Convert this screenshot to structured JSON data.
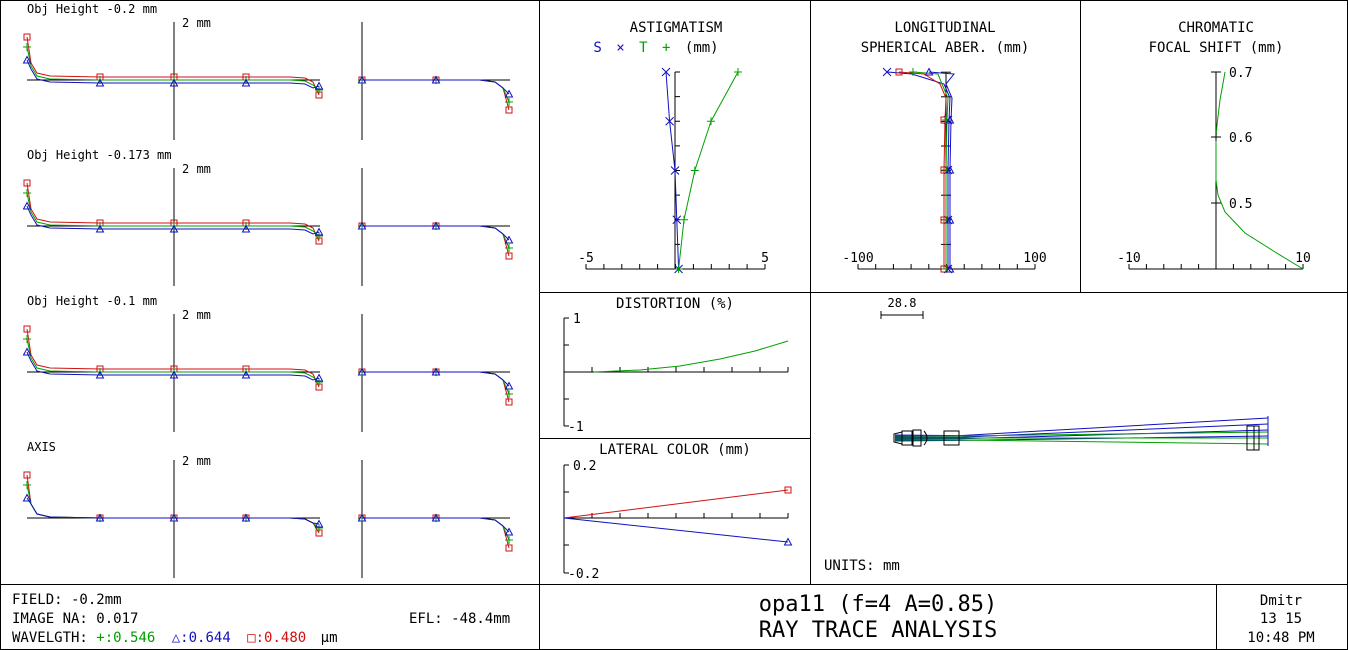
{
  "colors": {
    "green": "#00a000",
    "blue": "#1010c0",
    "red": "#d01010",
    "black": "#000000"
  },
  "ray_fan": {
    "scale_label": "2 mm",
    "fields": [
      {
        "label": "Obj Height -0.2 mm"
      },
      {
        "label": "Obj Height -0.173 mm"
      },
      {
        "label": "Obj Height -0.1 mm"
      },
      {
        "label": "AXIS"
      }
    ]
  },
  "chart_data": [
    {
      "type": "line",
      "title": "ASTIGMATISM",
      "legend": [
        "S",
        "×",
        "T",
        "+",
        "(mm)"
      ],
      "xlim": [
        -5,
        5
      ],
      "tick_labels": [
        "-5",
        "5"
      ],
      "series": [
        {
          "marker": "x",
          "color": "blue",
          "x": [
            -0.5,
            -0.3,
            0,
            0.1,
            0.2
          ],
          "y": [
            1.0,
            0.75,
            0.5,
            0.25,
            0
          ]
        },
        {
          "marker": "+",
          "color": "green",
          "x": [
            3.5,
            2.0,
            1.1,
            0.5,
            0.2
          ],
          "y": [
            1.0,
            0.75,
            0.5,
            0.25,
            0
          ]
        }
      ]
    },
    {
      "type": "line",
      "title": [
        "LONGITUDINAL",
        "SPHERICAL ABER. (mm)"
      ],
      "xlim": [
        -100,
        100
      ],
      "tick_labels": [
        "-100",
        "100"
      ]
    },
    {
      "type": "line",
      "title": [
        "CHROMATIC",
        "FOCAL SHIFT (mm)"
      ],
      "xlim": [
        -10,
        10
      ],
      "tick_labels": [
        "-10",
        "10"
      ],
      "y_tick_labels": [
        "0.7",
        "0.6",
        "0.5"
      ],
      "series": [
        {
          "color": "green",
          "x": [
            0.8,
            0,
            0,
            10
          ],
          "y": [
            0.7,
            0.6,
            0.5,
            0.4
          ]
        }
      ]
    },
    {
      "type": "line",
      "title": "DISTORTION (%)",
      "ylim": [
        -1,
        1
      ],
      "tick_labels": [
        "1",
        "-1"
      ],
      "series": [
        {
          "color": "green",
          "x": [
            0,
            0.25,
            0.5,
            0.75,
            1
          ],
          "y": [
            0,
            0.02,
            0.1,
            0.25,
            0.55
          ]
        }
      ]
    },
    {
      "type": "line",
      "title": "LATERAL COLOR (mm)",
      "ylim": [
        -0.2,
        0.2
      ],
      "tick_labels": [
        "0.2",
        "-0.2"
      ],
      "series": [
        {
          "color": "red",
          "marker": "square",
          "x": [
            0,
            1
          ],
          "y": [
            0,
            0.1
          ]
        },
        {
          "color": "blue",
          "marker": "triangle",
          "x": [
            0,
            1
          ],
          "y": [
            0,
            -0.09
          ]
        }
      ]
    }
  ],
  "layout_view": {
    "scale_value": "28.8",
    "units": "UNITS: mm"
  },
  "footer": {
    "field": "FIELD: -0.2mm",
    "image_na": "IMAGE NA: 0.017",
    "efl": "EFL: -48.4mm",
    "wavelength_prefix": "WAVELGTH: ",
    "wl_green": "+:0.546",
    "wl_blue": "△:0.644",
    "wl_red": "□:0.480",
    "wl_unit": "µm",
    "title_line1": "opa11  (f=4 A=0.85)",
    "title_line2": "RAY TRACE ANALYSIS",
    "author": "Dmitr",
    "date": "13  15",
    "time": "10:48 PM"
  }
}
